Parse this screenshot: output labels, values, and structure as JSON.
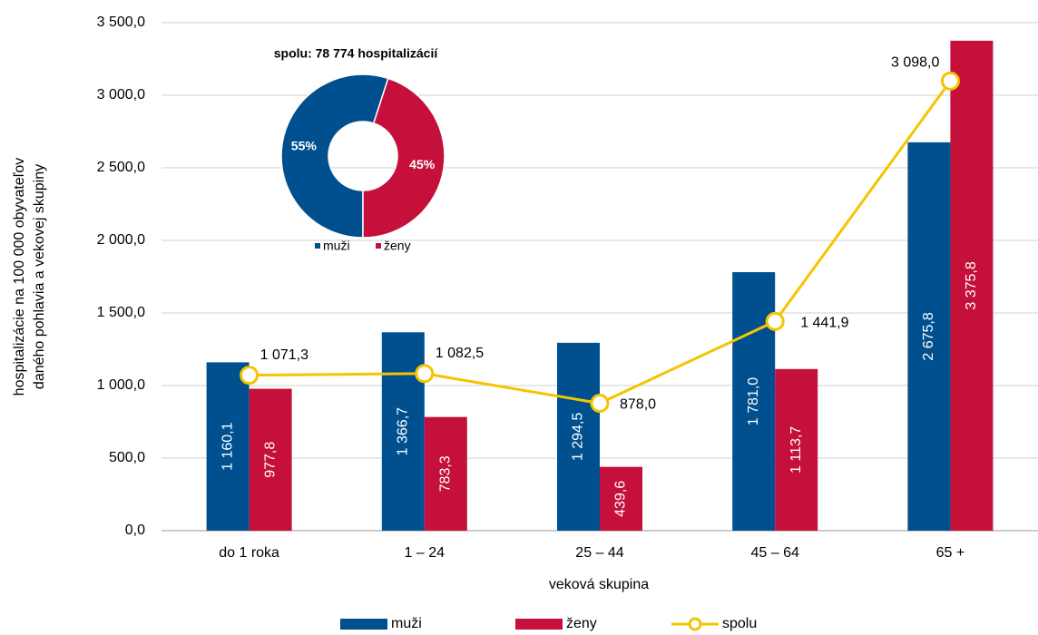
{
  "chart_data": [
    {
      "type": "bar",
      "x_label": "veková skupina",
      "y_label": [
        "hospitalizácie na 100 000 obyvateľov",
        "daného pohlavia a vekovej skupiny"
      ],
      "categories": [
        "do 1 roka",
        "1 – 24",
        "25 – 44",
        "45 – 64",
        "65 +"
      ],
      "series": [
        {
          "name": "muži",
          "color": "#00508f",
          "values": [
            1160.1,
            1366.7,
            1294.5,
            1781.0,
            2675.8
          ],
          "value_labels": [
            "1 160,1",
            "1 366,7",
            "1 294,5",
            "1 781,0",
            "2 675,8"
          ]
        },
        {
          "name": "ženy",
          "color": "#c4103a",
          "values": [
            977.8,
            783.3,
            439.6,
            1113.7,
            3375.8
          ],
          "value_labels": [
            "977,8",
            "783,3",
            "439,6",
            "1 113,7",
            "3 375,8"
          ]
        },
        {
          "name": "spolu",
          "type": "line",
          "color": "#f5c400",
          "values": [
            1071.3,
            1082.5,
            878.0,
            1441.9,
            3098.0
          ],
          "value_labels": [
            "1 071,3",
            "1 082,5",
            "878,0",
            "1 441,9",
            "3 098,0"
          ]
        }
      ],
      "ylim": [
        0,
        3500
      ],
      "yticks": [
        {
          "value": 0,
          "label": "0,0"
        },
        {
          "value": 500,
          "label": "500,0"
        },
        {
          "value": 1000,
          "label": "1 000,0"
        },
        {
          "value": 1500,
          "label": "1 500,0"
        },
        {
          "value": 2000,
          "label": "2 000,0"
        },
        {
          "value": 2500,
          "label": "2 500,0"
        },
        {
          "value": 3000,
          "label": "3 000,0"
        },
        {
          "value": 3500,
          "label": "3 500,0"
        }
      ],
      "grid": true,
      "legend": "bottom"
    },
    {
      "type": "pie",
      "title": "spolu: 78 774 hospitalizácií",
      "categories": [
        "muži",
        "ženy"
      ],
      "values": [
        55,
        45
      ],
      "value_labels": [
        "55%",
        "45%"
      ],
      "colors": [
        "#00508f",
        "#c4103a"
      ],
      "donut": true
    }
  ]
}
